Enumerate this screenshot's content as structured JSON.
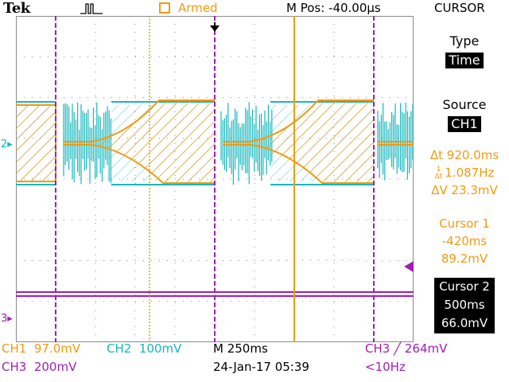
{
  "header": {
    "brand": "Tek",
    "trigger_status": "Armed",
    "m_pos": "M Pos: -40.00µs",
    "menu_title": "CURSOR"
  },
  "colors": {
    "ch1": "#f39a0e",
    "ch2": "#15b8bd",
    "ch3": "#a01eb4",
    "grid": "#8a8a8a"
  },
  "channel_markers": {
    "ch2": "2",
    "ch3": "3"
  },
  "side_menu": {
    "type_label": "Type",
    "type_value": "Time",
    "source_label": "Source",
    "source_value": "CH1",
    "delta_t": "Δt 920.0ms",
    "inv_delta_t": "1.087Hz",
    "delta_v": "ΔV 23.3mV",
    "cursor1_label": "Cursor 1",
    "cursor1_time": "-420ms",
    "cursor1_volt": "89.2mV",
    "cursor2_label": "Cursor 2",
    "cursor2_time": "500ms",
    "cursor2_volt": "66.0mV"
  },
  "footer": {
    "ch1_label": "CH1",
    "ch1_scale": "97.0mV",
    "ch2_label": "CH2",
    "ch2_scale": "100mV",
    "timebase": "M 250ms",
    "trigger": "CH3 ╱ 264mV",
    "ch3_label": "CH3",
    "ch3_scale": "200mV",
    "datetime": "24-Jan-17 05:39",
    "freq": "<10Hz"
  }
}
